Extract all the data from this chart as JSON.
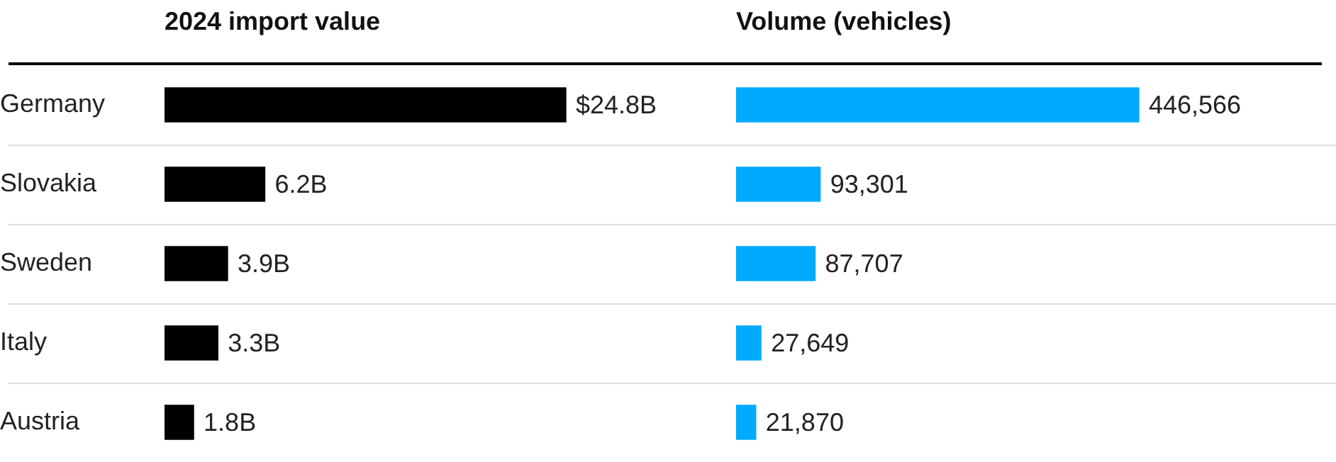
{
  "chart_data": [
    {
      "type": "bar",
      "orientation": "horizontal",
      "title": "2024 import value",
      "categories": [
        "Germany",
        "Slovakia",
        "Sweden",
        "Italy",
        "Austria"
      ],
      "values": [
        24.8,
        6.2,
        3.9,
        3.3,
        1.8
      ],
      "value_labels": [
        "$24.8B",
        "6.2B",
        "3.9B",
        "3.3B",
        "1.8B"
      ],
      "color": "#000000",
      "grid": "y",
      "legend": false
    },
    {
      "type": "bar",
      "orientation": "horizontal",
      "title": "Volume (vehicles)",
      "categories": [
        null,
        null,
        null,
        null,
        null
      ],
      "values": [
        446566,
        93301,
        87707,
        27649,
        21870
      ],
      "value_labels": [
        "446,566",
        "93,301",
        "87,707",
        "27,649",
        "21,870"
      ],
      "color": "#00aaff",
      "grid": "y",
      "legend": false
    }
  ]
}
